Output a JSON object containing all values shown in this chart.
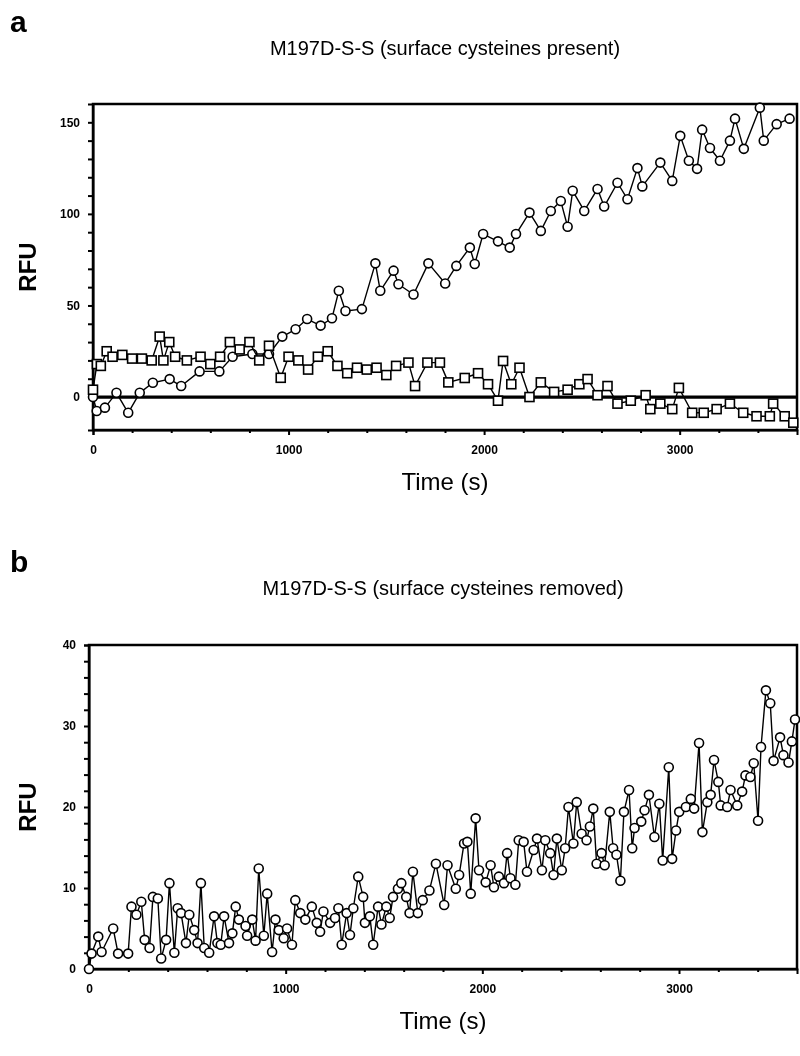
{
  "chart_data": [
    {
      "type": "line",
      "title": "M197D-S-S  (surface cysteines present)",
      "xlabel": "Time (s)",
      "ylabel": "RFU",
      "annotations": [
        "a"
      ],
      "xlim": [
        0,
        3600
      ],
      "ylim": [
        -18,
        160
      ],
      "xticks": [
        0,
        {
          "value": 200,
          "label": null
        },
        {
          "value": 400,
          "label": null
        },
        {
          "value": 600,
          "label": null
        },
        {
          "value": 800,
          "label": null
        },
        1000,
        {
          "value": 1200,
          "label": null
        },
        {
          "value": 1400,
          "label": null
        },
        {
          "value": 1600,
          "label": null
        },
        {
          "value": 1800,
          "label": null
        },
        2000,
        {
          "value": 2200,
          "label": null
        },
        {
          "value": 2400,
          "label": null
        },
        {
          "value": 2600,
          "label": null
        },
        {
          "value": 2800,
          "label": null
        },
        3000,
        {
          "value": 3200,
          "label": null
        },
        {
          "value": 3400,
          "label": null
        }
      ],
      "yticks": [
        0,
        {
          "value": 10,
          "label": null
        },
        {
          "value": 20,
          "label": null
        },
        {
          "value": 30,
          "label": null
        },
        {
          "value": 40,
          "label": null
        },
        50,
        {
          "value": 60,
          "label": null
        },
        {
          "value": 70,
          "label": null
        },
        {
          "value": 80,
          "label": null
        },
        {
          "value": 90,
          "label": null
        },
        100,
        {
          "value": 110,
          "label": null
        },
        {
          "value": 120,
          "label": null
        },
        {
          "value": 130,
          "label": null
        },
        {
          "value": 140,
          "label": null
        },
        150
      ],
      "grid": false,
      "line_style": "solid",
      "ref_lines": [
        {
          "axis": "y",
          "value": 0,
          "color": "#000000"
        }
      ],
      "series": [
        {
          "color": "#000000",
          "marker": "circle",
          "x": [
            0,
            19,
            61,
            120,
            180,
            239,
            306,
            392,
            451,
            545,
            646,
            714,
            815,
            900,
            968,
            1036,
            1095,
            1164,
            1222,
            1257,
            1291,
            1375,
            1444,
            1469,
            1537,
            1562,
            1639,
            1715,
            1801,
            1858,
            1927,
            1952,
            1995,
            2071,
            2131,
            2163,
            2232,
            2290,
            2341,
            2392,
            2427,
            2453,
            2512,
            2580,
            2614,
            2682,
            2733,
            2784,
            2809,
            2901,
            2962,
            3003,
            3047,
            3089,
            3115,
            3155,
            3206,
            3257,
            3283,
            3328,
            3410,
            3430,
            3496,
            3562
          ],
          "values": [
            0,
            -7.6,
            -5.8,
            2.3,
            -8.6,
            2.3,
            7.8,
            9.8,
            6,
            14,
            14,
            22,
            23.5,
            23.5,
            33,
            37,
            42.6,
            39,
            43,
            58,
            47,
            48,
            73,
            58,
            69,
            61.6,
            56,
            73,
            62,
            71.6,
            81.6,
            72.6,
            89,
            85,
            81.6,
            89,
            100.7,
            90.7,
            101.6,
            107,
            93,
            112.6,
            101.6,
            113.6,
            104,
            117,
            108,
            125,
            115,
            128,
            118,
            142.6,
            129,
            124.6,
            146,
            136,
            129,
            140,
            152,
            135.5,
            158,
            140,
            149,
            152
          ]
        },
        {
          "color": "#000000",
          "marker": "square",
          "x": [
            0,
            20,
            40,
            70,
            100,
            150,
            200,
            250,
            300,
            341,
            360,
            390,
            420,
            480,
            550,
            600,
            650,
            700,
            750,
            800,
            850,
            900,
            960,
            1000,
            1050,
            1100,
            1150,
            1200,
            1250,
            1300,
            1350,
            1400,
            1450,
            1500,
            1550,
            1613,
            1647,
            1710,
            1774,
            1817,
            1901,
            1969,
            2020,
            2071,
            2097,
            2139,
            2181,
            2232,
            2290,
            2358,
            2427,
            2487,
            2529,
            2580,
            2631,
            2682,
            2750,
            2826,
            2850,
            2901,
            2962,
            2996,
            3064,
            3123,
            3189,
            3257,
            3325,
            3393,
            3461,
            3478,
            3537,
            3581
          ],
          "values": [
            4,
            18,
            17,
            25,
            22,
            23,
            21,
            21,
            20,
            33,
            20,
            30,
            22,
            20,
            22,
            18,
            22,
            30,
            26,
            30,
            20,
            28,
            10.5,
            22,
            20,
            15,
            22,
            25,
            17,
            13,
            16,
            15,
            16,
            12,
            17,
            18.8,
            6,
            18.8,
            18.8,
            8,
            10.4,
            13,
            7,
            -2,
            19.7,
            7,
            16,
            0,
            8,
            2.8,
            4,
            7,
            9.8,
            1,
            6,
            -3.6,
            -2,
            1,
            -6.6,
            -3.6,
            -6.6,
            5,
            -8.6,
            -8.6,
            -6.6,
            -3.6,
            -8.6,
            -10.5,
            -10.5,
            -3.6,
            -10.5,
            -14
          ]
        }
      ]
    },
    {
      "type": "line",
      "title": "M197D-S-S (surface cysteines removed)",
      "xlabel": "Time (s)",
      "ylabel": "RFU",
      "annotations": [
        "b"
      ],
      "xlim": [
        0,
        3600
      ],
      "ylim": [
        0,
        40
      ],
      "xticks": [
        0,
        {
          "value": 200,
          "label": null
        },
        {
          "value": 400,
          "label": null
        },
        {
          "value": 600,
          "label": null
        },
        {
          "value": 800,
          "label": null
        },
        1000,
        {
          "value": 1200,
          "label": null
        },
        {
          "value": 1400,
          "label": null
        },
        {
          "value": 1600,
          "label": null
        },
        {
          "value": 1800,
          "label": null
        },
        2000,
        {
          "value": 2200,
          "label": null
        },
        {
          "value": 2400,
          "label": null
        },
        {
          "value": 2600,
          "label": null
        },
        {
          "value": 2800,
          "label": null
        },
        3000,
        {
          "value": 3200,
          "label": null
        },
        {
          "value": 3400,
          "label": null
        }
      ],
      "yticks": [
        0,
        {
          "value": 2,
          "label": null
        },
        {
          "value": 4,
          "label": null
        },
        {
          "value": 6,
          "label": null
        },
        {
          "value": 8,
          "label": null
        },
        10,
        {
          "value": 12,
          "label": null
        },
        {
          "value": 14,
          "label": null
        },
        {
          "value": 16,
          "label": null
        },
        {
          "value": 18,
          "label": null
        },
        20,
        {
          "value": 22,
          "label": null
        },
        {
          "value": 24,
          "label": null
        },
        {
          "value": 26,
          "label": null
        },
        {
          "value": 28,
          "label": null
        },
        30,
        {
          "value": 32,
          "label": null
        },
        {
          "value": 34,
          "label": null
        },
        {
          "value": 36,
          "label": null
        },
        {
          "value": 38,
          "label": null
        },
        40
      ],
      "grid": false,
      "line_style": "solid",
      "series": [
        {
          "color": "#000000",
          "marker": "circle",
          "x": [
            0,
            13,
            47,
            64,
            123,
            148,
            170,
            199,
            216,
            241,
            266,
            283,
            308,
            325,
            350,
            367,
            392,
            409,
            434,
            451,
            468,
            493,
            510,
            535,
            552,
            569,
            586,
            611,
            636,
            653,
            670,
            687,
            712,
            729,
            746,
            762,
            796,
            804,
            830,
            847,
            863,
            889,
            906,
            931,
            948,
            965,
            990,
            1007,
            1032,
            1049,
            1074,
            1100,
            1133,
            1158,
            1175,
            1192,
            1226,
            1251,
            1268,
            1285,
            1310,
            1327,
            1344,
            1369,
            1394,
            1403,
            1428,
            1445,
            1470,
            1487,
            1512,
            1529,
            1546,
            1571,
            1588,
            1613,
            1630,
            1647,
            1672,
            1697,
            1731,
            1764,
            1806,
            1823,
            1865,
            1882,
            1907,
            1924,
            1941,
            1966,
            1983,
            2017,
            2042,
            2059,
            2084,
            2110,
            2126,
            2143,
            2168,
            2185,
            2210,
            2227,
            2261,
            2278,
            2303,
            2320,
            2345,
            2362,
            2379,
            2404,
            2421,
            2438,
            2463,
            2480,
            2505,
            2530,
            2547,
            2564,
            2581,
            2606,
            2622,
            2648,
            2665,
            2682,
            2702,
            2720,
            2746,
            2762,
            2774,
            2808,
            2825,
            2847,
            2875,
            2900,
            2917,
            2948,
            2965,
            2985,
            3001,
            3035,
            3060,
            3077,
            3102,
            3119,
            3144,
            3161,
            3178,
            3200,
            3212,
            3245,
            3262,
            3296,
            3321,
            3338,
            3363,
            3380,
            3402,
            3417,
            3442,
            3464,
            3481,
            3514,
            3531,
            3557,
            3574,
            3590
          ],
          "values": [
            0,
            1.9,
            4,
            2.1,
            5,
            1.9,
            null,
            1.9,
            7.7,
            6.7,
            8.3,
            3.6,
            2.6,
            8.9,
            8.7,
            1.3,
            3.6,
            10.6,
            2,
            7.5,
            6.9,
            3.2,
            6.7,
            4.8,
            3.2,
            10.6,
            2.6,
            2,
            6.5,
            3.2,
            3,
            6.5,
            3.2,
            4.4,
            7.7,
            6.1,
            5.3,
            4.1,
            6.1,
            3.5,
            12.4,
            4.1,
            9.3,
            2.1,
            6.1,
            4.8,
            3.8,
            5,
            3,
            8.5,
            6.9,
            6.1,
            7.7,
            5.7,
            4.6,
            7.1,
            5.7,
            6.3,
            7.5,
            3,
            6.9,
            4.2,
            7.5,
            11.4,
            8.9,
            5.7,
            6.5,
            3,
            7.7,
            5.5,
            7.7,
            6.3,
            8.9,
            9.9,
            10.6,
            8.9,
            6.9,
            12,
            6.9,
            8.5,
            9.7,
            13,
            7.9,
            12.8,
            9.9,
            11.6,
            15.5,
            15.7,
            9.3,
            18.6,
            12.2,
            10.7,
            12.8,
            10.1,
            11.4,
            10.6,
            14.3,
            11.2,
            10.4,
            15.9,
            15.7,
            12,
            14.7,
            16.1,
            12.2,
            15.9,
            14.3,
            11.6,
            16.1,
            12.2,
            14.9,
            20,
            15.5,
            20.6,
            16.7,
            15.9,
            17.6,
            19.8,
            13,
            14.3,
            12.8,
            19.4,
            14.9,
            14.1,
            10.9,
            19.4,
            22.1,
            14.9,
            17.4,
            18.2,
            19.6,
            21.5,
            16.3,
            20.4,
            13.4,
            24.9,
            13.6,
            17.1,
            19.4,
            20,
            21,
            19.8,
            27.9,
            16.9,
            20.6,
            21.5,
            25.8,
            23.1,
            20.2,
            20,
            22.1,
            20.2,
            21.9,
            23.9,
            23.7,
            25.4,
            18.3,
            27.4,
            34.4,
            32.8,
            25.7,
            28.6,
            26.4,
            25.5,
            28.1,
            30.8
          ]
        }
      ]
    }
  ]
}
